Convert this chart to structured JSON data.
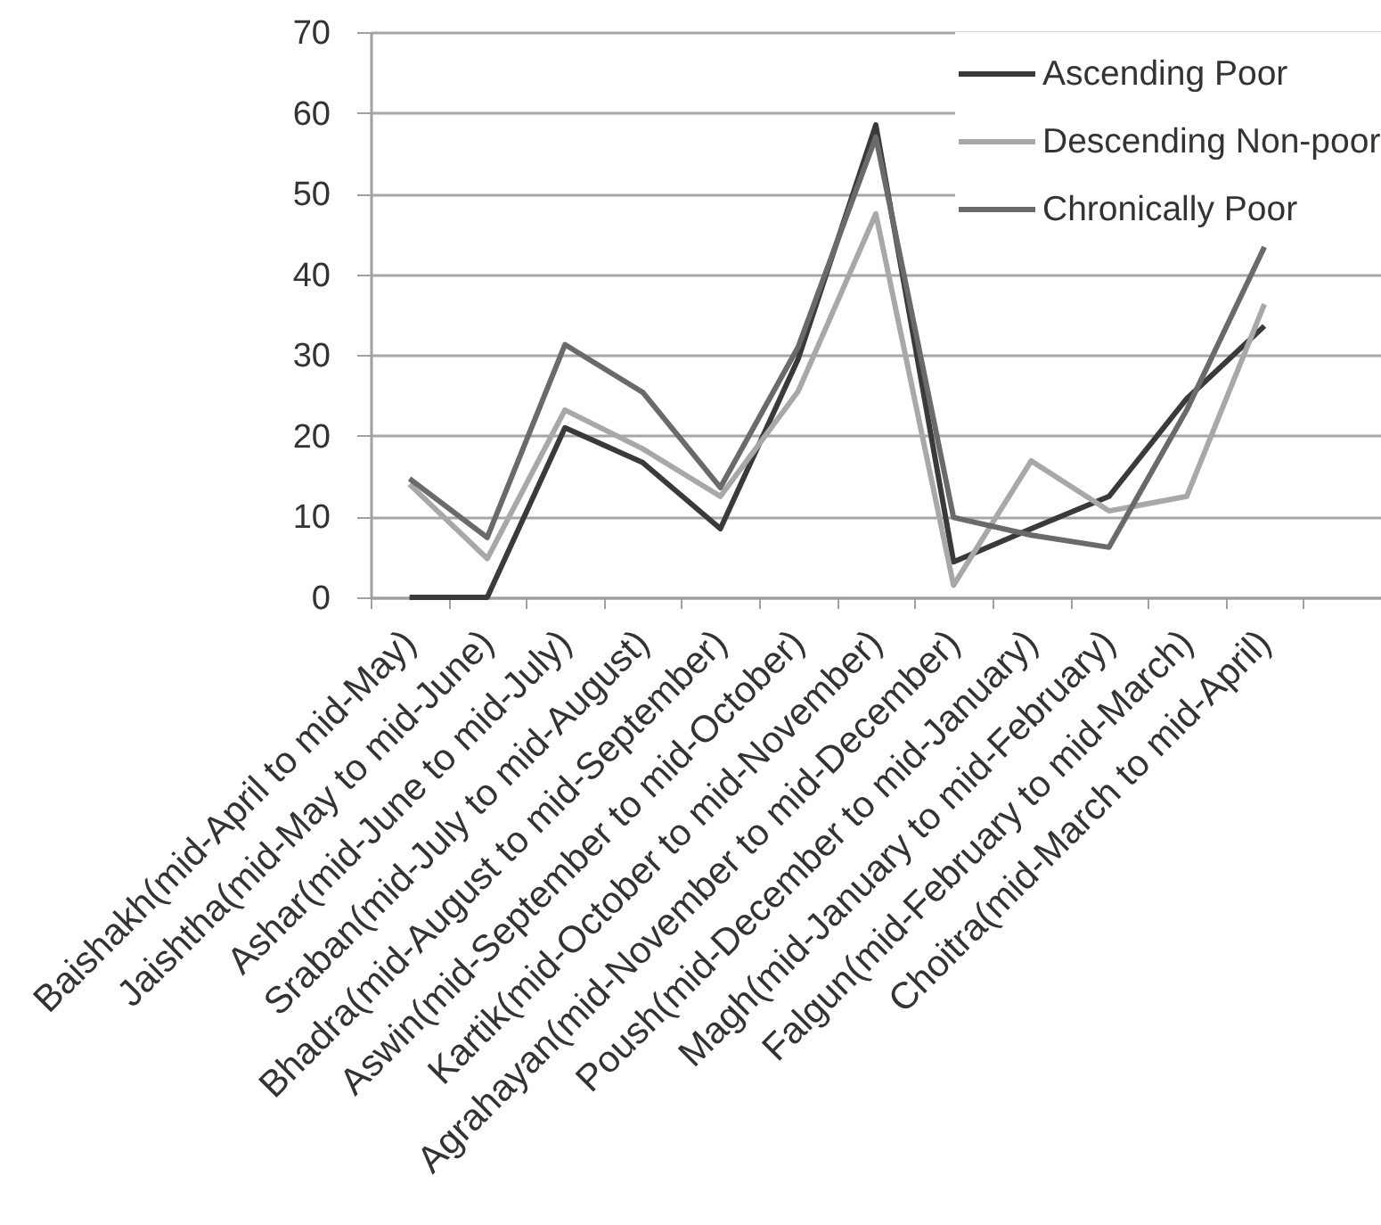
{
  "chart_data": {
    "type": "line",
    "categories": [
      "Baishakh(mid-April to mid-May)",
      "Jaishtha(mid-May to mid-June)",
      "Ashar(mid-June to mid-July)",
      "Sraban(mid-July to mid-August)",
      "Bhadra(mid-August to mid-September)",
      "Aswin(mid-September to mid-October)",
      "Kartik(mid-October to mid-November)",
      "Agrahayan(mid-November to mid-December)",
      "Poush(mid-December to mid-January)",
      "Magh(mid-January to mid-February)",
      "Falgun(mid-February to mid-March)",
      "Choitra(mid-March to mid-April)",
      null
    ],
    "series": [
      {
        "name": "Ascending Poor",
        "color": "#3a3a3a",
        "values": [
          0,
          0,
          21,
          16.7,
          8.5,
          29.5,
          58.5,
          4.4,
          8.5,
          12.5,
          24.6,
          33.6,
          null
        ]
      },
      {
        "name": "Descending Non-poor",
        "color": "#a8a8a8",
        "values": [
          14,
          4.8,
          23.2,
          18.4,
          12.5,
          25.5,
          47.5,
          1.5,
          16.9,
          10.7,
          12.5,
          36.3,
          null
        ]
      },
      {
        "name": "Chronically Poor",
        "color": "#6a6a6a",
        "values": [
          14.7,
          7.4,
          31.3,
          25.4,
          13.6,
          31,
          57,
          9.9,
          7.7,
          6.2,
          23.2,
          43.4,
          null
        ]
      }
    ],
    "ylim": [
      0,
      70
    ],
    "yticks": [
      0,
      10,
      20,
      30,
      40,
      50,
      60,
      70
    ],
    "grid": "y",
    "legend": "top right"
  }
}
